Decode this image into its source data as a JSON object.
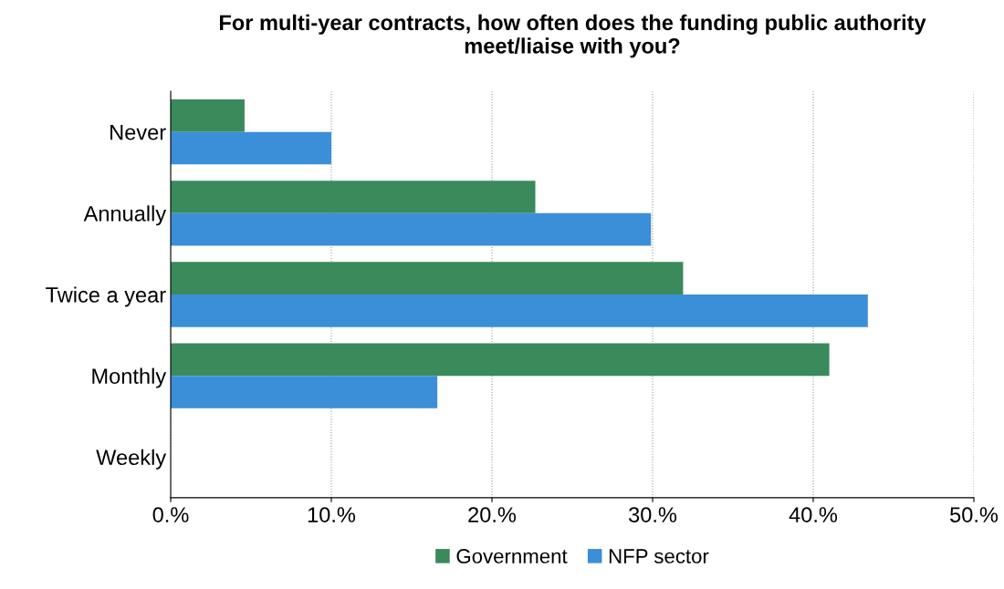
{
  "chart_data": {
    "type": "bar",
    "orientation": "horizontal",
    "title": "For multi-year contracts, how often does the funding public authority\nmeet/liaise with you?",
    "categories": [
      "Never",
      "Annually",
      "Twice a year",
      "Monthly",
      "Weekly"
    ],
    "series": [
      {
        "name": "Government",
        "color": "#3a8a5c",
        "values": [
          4.6,
          22.7,
          31.9,
          41.0,
          0
        ]
      },
      {
        "name": "NFP sector",
        "color": "#3a8fd8",
        "values": [
          10.0,
          29.9,
          43.4,
          16.6,
          0
        ]
      }
    ],
    "xlim": [
      0,
      50
    ],
    "xticks": [
      {
        "value": 0,
        "label": "0.%"
      },
      {
        "value": 10,
        "label": "10.%"
      },
      {
        "value": 20,
        "label": "20.%"
      },
      {
        "value": 30,
        "label": "30.%"
      },
      {
        "value": 40,
        "label": "40.%"
      },
      {
        "value": 50,
        "label": "50.%"
      }
    ],
    "grid": "x",
    "legend": "bottom"
  }
}
